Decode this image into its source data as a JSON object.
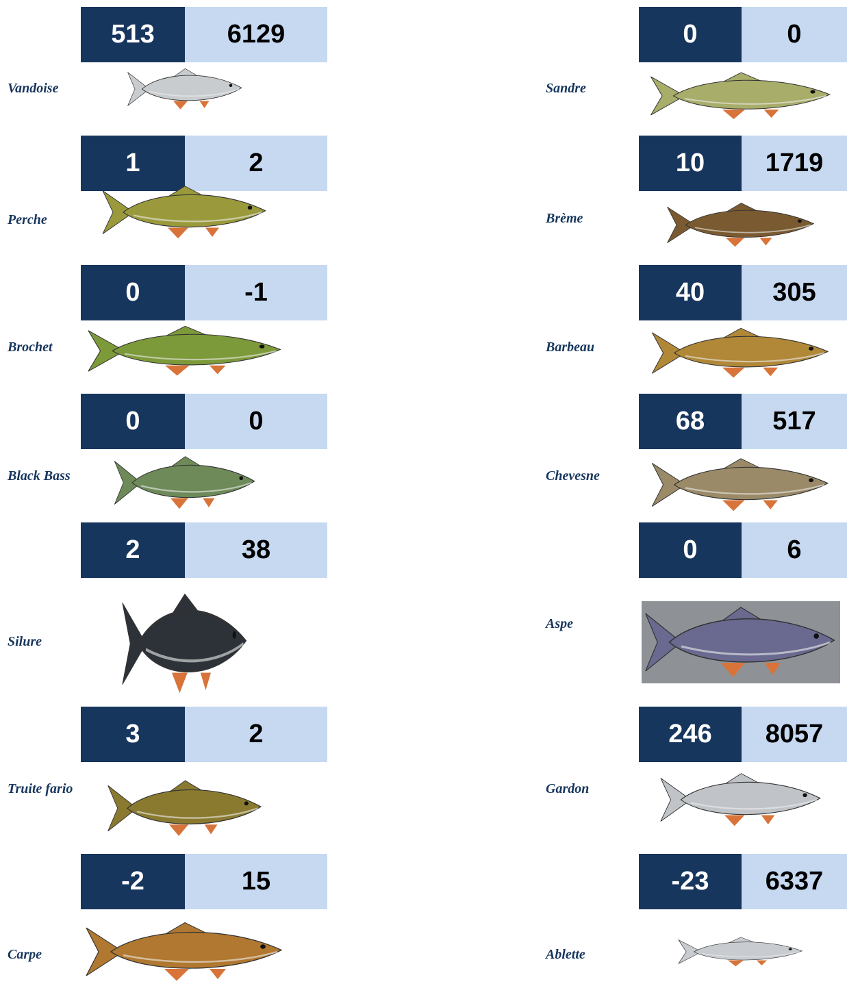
{
  "columns": [
    {
      "fish": [
        {
          "name": "Vandoise",
          "values": [
            513,
            6129
          ]
        },
        {
          "name": "Perche",
          "values": [
            1,
            2
          ]
        },
        {
          "name": "Brochet",
          "values": [
            0,
            -1
          ]
        },
        {
          "name": "Black Bass",
          "values": [
            0,
            0
          ]
        },
        {
          "name": "Silure",
          "values": [
            2,
            38
          ]
        },
        {
          "name": "Truite fario",
          "values": [
            3,
            2
          ]
        },
        {
          "name": "Carpe",
          "values": [
            -2,
            15
          ]
        }
      ]
    },
    {
      "fish": [
        {
          "name": "Sandre",
          "values": [
            0,
            0
          ]
        },
        {
          "name": "Brème",
          "values": [
            10,
            1719
          ]
        },
        {
          "name": "Barbeau",
          "values": [
            40,
            305
          ]
        },
        {
          "name": "Chevesne",
          "values": [
            68,
            517
          ]
        },
        {
          "name": "Aspe",
          "values": [
            0,
            6
          ]
        },
        {
          "name": "Gardon",
          "values": [
            246,
            8057
          ]
        },
        {
          "name": "Ablette",
          "values": [
            -23,
            6337
          ]
        }
      ]
    }
  ]
}
